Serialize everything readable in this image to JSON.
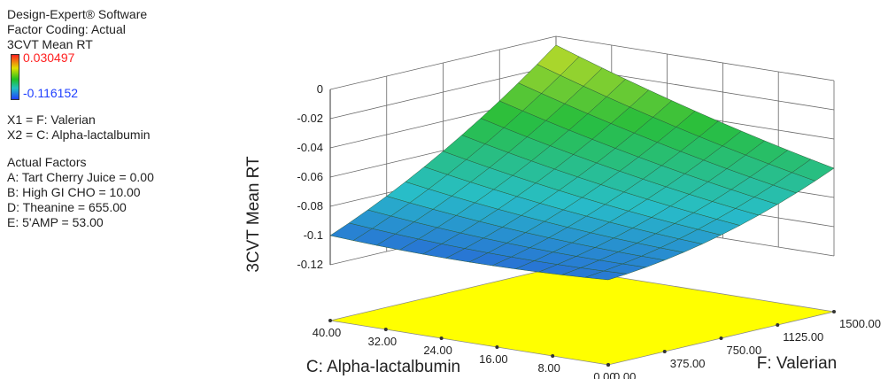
{
  "panel": {
    "software": "Design-Expert® Software",
    "coding": "Factor Coding: Actual",
    "response": "3CVT Mean RT",
    "design_points": [],
    "high": "0.030497",
    "low": "-0.116152",
    "x1": "X1 = F: Valerian",
    "x2": "X2 = C: Alpha-lactalbumin",
    "actual_factors_heading": "Actual Factors",
    "factors": [
      "A: Tart Cherry Juice = 0.00",
      "B: High GI CHO = 10.00",
      "D: Theanine = 655.00",
      "E: 5'AMP = 53.00"
    ]
  },
  "colors": {
    "high": "#ff2020",
    "low": "#2040ff",
    "floor": "#ffff00"
  },
  "chart_data": {
    "type": "surface",
    "title": "",
    "zlabel": "3CVT Mean RT",
    "xlabel": "F: Valerian",
    "ylabel": "C: Alpha-lactalbumin",
    "x_ticks": [
      "0.00",
      "375.00",
      "750.00",
      "1125.00",
      "1500.00"
    ],
    "y_ticks": [
      "0.00",
      "8.00",
      "16.00",
      "24.00",
      "32.00",
      "40.00"
    ],
    "z_ticks": [
      "0",
      "-0.02",
      "-0.04",
      "-0.06",
      "-0.08",
      "-0.1",
      "-0.12"
    ],
    "x_range": [
      0,
      1500
    ],
    "y_range": [
      0,
      40
    ],
    "z_range": [
      -0.12,
      0
    ],
    "corners": {
      "valerian_0_alpha_40": -0.1,
      "valerian_0_alpha_0": -0.1,
      "valerian_1500_alpha_0": -0.06,
      "valerian_1500_alpha_40": -0.006
    },
    "grid_lines": true
  }
}
